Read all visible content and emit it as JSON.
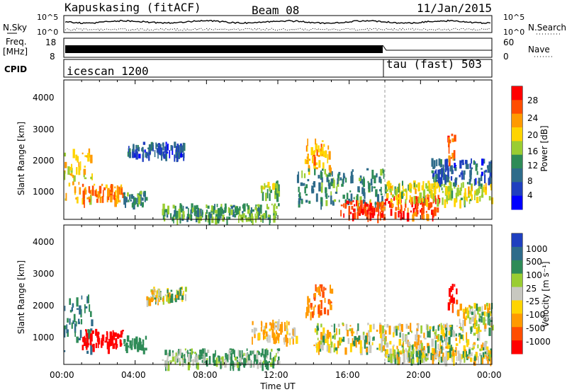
{
  "header": {
    "station": "Kapuskasing (fitACF)",
    "beam": "Beam 08",
    "date": "11/Jan/2015"
  },
  "top_panels": {
    "nsky_label": "N.Sky",
    "nsky_ticks": [
      "10^5",
      "10^0"
    ],
    "nsearch_label": "N.Search",
    "nsearch_ticks": [
      "10^5",
      "10^0"
    ],
    "freq_label": "Freq.",
    "freq_unit": "[MHz]",
    "freq_ticks": [
      "18",
      "8"
    ],
    "nave_label": "Nave",
    "nave_ticks": [
      "60",
      "0"
    ],
    "cpid_label": "CPID",
    "cpid_segments": [
      {
        "name": "icescan 1200",
        "start_hr": 0
      },
      {
        "name": "tau (fast) 503",
        "start_hr": 18
      }
    ]
  },
  "chart_data": [
    {
      "type": "heatmap",
      "name": "power-panel",
      "ylabel": "Slant Range [km]",
      "xlabel": "Time UT",
      "xlim_hours": [
        0,
        24
      ],
      "ylim": [
        200,
        4500
      ],
      "yticks": [
        "4000",
        "3000",
        "2000",
        "1000"
      ],
      "colorbar": {
        "label": "Power [dB]",
        "ticks": [
          "28",
          "24",
          "20",
          "16",
          "12",
          "8",
          "4"
        ],
        "colors": [
          "#ff0000",
          "#ff4d00",
          "#ff9a00",
          "#ffd400",
          "#9acd32",
          "#2e8b57",
          "#2e6b8a",
          "#1f3fbf",
          "#0000ff"
        ]
      },
      "echo_regions": [
        {
          "t0": 0.0,
          "t1": 1.6,
          "r0": 600,
          "r1": 2400,
          "level": 20
        },
        {
          "t0": 1.0,
          "t1": 3.3,
          "r0": 800,
          "r1": 1300,
          "level": 24
        },
        {
          "t0": 3.3,
          "t1": 4.6,
          "r0": 700,
          "r1": 1100,
          "level": 12
        },
        {
          "t0": 3.5,
          "t1": 6.8,
          "r0": 2200,
          "r1": 2600,
          "level": 8
        },
        {
          "t0": 5.5,
          "t1": 12.0,
          "r0": 250,
          "r1": 700,
          "level": 14
        },
        {
          "t0": 11.0,
          "t1": 12.0,
          "r0": 1000,
          "r1": 1400,
          "level": 16
        },
        {
          "t0": 13.5,
          "t1": 15.0,
          "r0": 1800,
          "r1": 2700,
          "level": 22
        },
        {
          "t0": 13.0,
          "t1": 18.0,
          "r0": 700,
          "r1": 1800,
          "level": 12
        },
        {
          "t0": 15.5,
          "t1": 18.0,
          "r0": 350,
          "r1": 800,
          "level": 28
        },
        {
          "t0": 18.0,
          "t1": 21.0,
          "r0": 350,
          "r1": 1000,
          "level": 28
        },
        {
          "t0": 18.0,
          "t1": 24.0,
          "r0": 800,
          "r1": 1400,
          "level": 18
        },
        {
          "t0": 20.5,
          "t1": 24.0,
          "r0": 1400,
          "r1": 2100,
          "level": 8
        },
        {
          "t0": 21.5,
          "t1": 22.0,
          "r0": 2000,
          "r1": 2900,
          "level": 26
        }
      ]
    },
    {
      "type": "heatmap",
      "name": "velocity-panel",
      "ylabel": "Slant Range [km]",
      "xlabel": "Time UT",
      "xlim_hours": [
        0,
        24
      ],
      "ylim": [
        200,
        4500
      ],
      "yticks": [
        "4000",
        "3000",
        "2000",
        "1000"
      ],
      "xticks": [
        "00:00",
        "04:00",
        "08:00",
        "12:00",
        "16:00",
        "20:00",
        "00:00"
      ],
      "colorbar": {
        "label": "Velocity [m s⁻¹]",
        "ticks": [
          "1000",
          "500",
          "100",
          "25",
          "-25",
          "-100",
          "-500",
          "-1000"
        ],
        "colors": [
          "#1f3fbf",
          "#2e6b8a",
          "#2e8b57",
          "#9acd32",
          "#c8c8c0",
          "#ffd400",
          "#ff9a00",
          "#ff4d00",
          "#ff0000"
        ]
      },
      "echo_regions": [
        {
          "t0": 0.0,
          "t1": 1.6,
          "r0": 600,
          "r1": 2400,
          "level": 300
        },
        {
          "t0": 1.0,
          "t1": 3.3,
          "r0": 800,
          "r1": 1300,
          "level": -800
        },
        {
          "t0": 3.3,
          "t1": 4.6,
          "r0": 700,
          "r1": 1100,
          "level": 200
        },
        {
          "t0": 4.5,
          "t1": 6.8,
          "r0": 2200,
          "r1": 2600,
          "level": 0
        },
        {
          "t0": 5.5,
          "t1": 12.0,
          "r0": 250,
          "r1": 700,
          "level": 80
        },
        {
          "t0": 10.5,
          "t1": 13.0,
          "r0": 1000,
          "r1": 1600,
          "level": -80
        },
        {
          "t0": 13.5,
          "t1": 15.0,
          "r0": 1800,
          "r1": 2700,
          "level": -300
        },
        {
          "t0": 14.0,
          "t1": 24.0,
          "r0": 700,
          "r1": 1500,
          "level": 0
        },
        {
          "t0": 18.0,
          "t1": 24.0,
          "r0": 400,
          "r1": 700,
          "level": 0
        },
        {
          "t0": 21.5,
          "t1": 22.0,
          "r0": 2000,
          "r1": 2900,
          "level": -700
        },
        {
          "t0": 22.0,
          "t1": 24.0,
          "r0": 1500,
          "r1": 2100,
          "level": 0
        }
      ]
    }
  ]
}
